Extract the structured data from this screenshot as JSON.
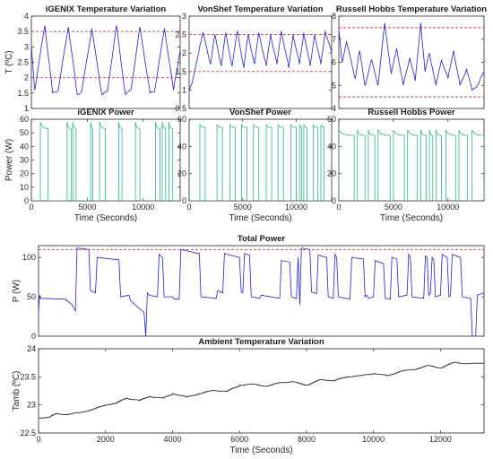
{
  "colors": {
    "temperature": "#1f1fd8",
    "power": "#2ab58c",
    "total": "#1f1fd8",
    "ambient": "#222222",
    "limit": "#e8333a",
    "axis": "#262626"
  },
  "chart_data": [
    {
      "id": "igenix_temp",
      "type": "line",
      "title": "iGENIX Temperature Variation",
      "xlabel": "",
      "ylabel": "T (ºC)",
      "xlim": [
        0,
        13300
      ],
      "ylim": [
        1,
        4
      ],
      "xticks": [],
      "yticks": [
        1,
        1.5,
        2,
        2.5,
        3,
        3.5,
        4
      ],
      "ytick_labels": [
        "1",
        "1.5",
        "2",
        "2.5",
        "3",
        "3.5",
        "4"
      ],
      "thresholds": [
        2,
        3.5
      ],
      "series": [
        {
          "x": [
            0,
            300,
            1200,
            1900,
            2400,
            3300,
            4100,
            4500,
            5400,
            6300,
            6800,
            7600,
            8400,
            8900,
            9700,
            10600,
            11000,
            11900,
            12700,
            13300
          ],
          "values": [
            3.05,
            1.6,
            3.7,
            1.5,
            1.6,
            3.65,
            1.45,
            1.55,
            3.6,
            1.45,
            1.55,
            3.7,
            1.45,
            1.6,
            3.65,
            1.5,
            1.55,
            3.6,
            1.6,
            2.9
          ]
        }
      ]
    },
    {
      "id": "vonshef_temp",
      "type": "line",
      "title": "VonShef Temperature Variation",
      "xlabel": "",
      "ylabel": "",
      "xlim": [
        0,
        13300
      ],
      "ylim": [
        0.5,
        3
      ],
      "xticks": [],
      "yticks": [
        0.5,
        1,
        1.5,
        2,
        2.5,
        3
      ],
      "ytick_labels": [
        "0.5",
        "1",
        "1.5",
        "2",
        "2.5",
        "3"
      ],
      "thresholds": [
        1.5,
        2.5
      ],
      "series": [
        {
          "x": [
            0,
            300,
            1000,
            1300,
            2000,
            2400,
            3000,
            3400,
            4000,
            4500,
            5100,
            5500,
            6100,
            6500,
            7200,
            7600,
            8200,
            8600,
            9300,
            9700,
            10300,
            10700,
            11300,
            11700,
            12300,
            12700,
            13300
          ],
          "values": [
            1.0,
            1.2,
            2.2,
            2.55,
            1.7,
            2.5,
            1.65,
            2.55,
            1.65,
            2.6,
            1.6,
            2.5,
            1.7,
            2.55,
            1.65,
            2.5,
            1.7,
            2.6,
            1.6,
            2.5,
            1.7,
            2.55,
            1.65,
            2.5,
            1.7,
            2.6,
            2.0
          ]
        }
      ]
    },
    {
      "id": "russell_temp",
      "type": "line",
      "title": "Russell Hobbs Temperature Variation",
      "xlabel": "",
      "ylabel": "",
      "xlim": [
        0,
        13300
      ],
      "ylim": [
        4,
        8
      ],
      "xticks": [],
      "yticks": [
        4,
        5,
        6,
        7,
        8
      ],
      "ytick_labels": [
        "4",
        "5",
        "6",
        "7",
        "8"
      ],
      "thresholds": [
        4.5,
        7.5
      ],
      "series": [
        {
          "x": [
            0,
            300,
            700,
            1500,
            1900,
            2400,
            3000,
            3600,
            4200,
            4800,
            5300,
            5900,
            6500,
            7000,
            7500,
            7900,
            8300,
            8900,
            9400,
            10000,
            10500,
            11100,
            11700,
            12200,
            12700,
            13300
          ],
          "values": [
            7.4,
            6.0,
            6.9,
            5.3,
            6.5,
            5.0,
            6.1,
            5.0,
            7.7,
            5.5,
            6.6,
            5.0,
            6.2,
            5.2,
            7.7,
            5.6,
            6.4,
            5.0,
            6.1,
            5.3,
            6.5,
            5.0,
            5.7,
            4.8,
            5.0,
            5.6
          ]
        }
      ]
    },
    {
      "id": "igenix_power",
      "type": "line",
      "title": "iGENIX Power",
      "xlabel": "Time (Seconds)",
      "ylabel": "Power (W)",
      "xlim": [
        0,
        13300
      ],
      "ylim": [
        0,
        60
      ],
      "xticks": [
        0,
        5000,
        10000
      ],
      "xtick_labels": [
        "0",
        "5000",
        "10000"
      ],
      "yticks": [
        0,
        10,
        20,
        30,
        40,
        50,
        60
      ],
      "ytick_labels": [
        "0",
        "10",
        "20",
        "30",
        "40",
        "50",
        "60"
      ],
      "pulses": [
        [
          800,
          1500
        ],
        [
          3200,
          3550
        ],
        [
          3700,
          4000
        ],
        [
          5300,
          5500
        ],
        [
          6100,
          6600
        ],
        [
          7800,
          8100
        ],
        [
          9300,
          9700
        ],
        [
          11100,
          11500
        ],
        [
          11700,
          12000
        ],
        [
          12300,
          12600
        ]
      ],
      "on_power": 58,
      "settle_power": 53
    },
    {
      "id": "vonshef_power",
      "type": "line",
      "title": "VonShef Power",
      "xlabel": "Time (Seconds)",
      "ylabel": "",
      "xlim": [
        0,
        13300
      ],
      "ylim": [
        0,
        60
      ],
      "xticks": [
        0,
        5000,
        10000
      ],
      "xtick_labels": [
        "0",
        "5000",
        "10000"
      ],
      "yticks": [
        0,
        20,
        40,
        60
      ],
      "ytick_labels": [
        "0",
        "20",
        "40",
        "60"
      ],
      "pulses": [
        [
          1000,
          1500
        ],
        [
          2600,
          3100
        ],
        [
          3800,
          4300
        ],
        [
          4900,
          5400
        ],
        [
          6000,
          6500
        ],
        [
          7200,
          7700
        ],
        [
          8300,
          8800
        ],
        [
          9500,
          10000
        ],
        [
          10300,
          10500
        ],
        [
          10700,
          11000
        ],
        [
          11600,
          12000
        ],
        [
          12300,
          12600
        ]
      ],
      "on_power": 56,
      "settle_power": 54
    },
    {
      "id": "russell_power",
      "type": "line",
      "title": "Russell Hobbs Power",
      "xlabel": "Time (Seconds)",
      "ylabel": "",
      "xlim": [
        0,
        13300
      ],
      "ylim": [
        0,
        60
      ],
      "xticks": [
        0,
        5000,
        10000
      ],
      "xtick_labels": [
        "0",
        "5000",
        "10000"
      ],
      "yticks": [
        0,
        20,
        40,
        60
      ],
      "ytick_labels": [
        "0",
        "20",
        "40",
        "60"
      ],
      "pulses": [
        [
          0,
          1400
        ],
        [
          1700,
          2400
        ],
        [
          2700,
          3300
        ],
        [
          3600,
          4700
        ],
        [
          5000,
          6000
        ],
        [
          6300,
          7200
        ],
        [
          7500,
          8000
        ],
        [
          8300,
          8600
        ],
        [
          8900,
          9400
        ],
        [
          9800,
          10700
        ],
        [
          11000,
          11800
        ],
        [
          12200,
          13300
        ]
      ],
      "on_power": 52,
      "settle_power": 48
    },
    {
      "id": "total_power",
      "type": "line",
      "title": "Total Power",
      "xlabel": "",
      "ylabel": "P (W)",
      "xlim": [
        0,
        13300
      ],
      "ylim": [
        0,
        115
      ],
      "xticks": [],
      "yticks": [
        0,
        50,
        100
      ],
      "ytick_labels": [
        "0",
        "50",
        "100"
      ],
      "thresholds": [
        110
      ],
      "series": [
        {
          "x": [
            0,
            30,
            60,
            800,
            1000,
            1100,
            1150,
            1500,
            1550,
            1700,
            1750,
            2400,
            2450,
            2700,
            2750,
            3150,
            3200,
            3250,
            3300,
            3550,
            3600,
            3700,
            3750,
            4000,
            4050,
            4200,
            4250,
            4800,
            4850,
            5300,
            5350,
            5500,
            5550,
            6000,
            6050,
            6100,
            6150,
            6300,
            6350,
            6600,
            6650,
            7200,
            7250,
            7500,
            7550,
            7700,
            7750,
            7800,
            7850,
            8100,
            8150,
            8300,
            8350,
            8600,
            8650,
            8800,
            8850,
            8900,
            8950,
            9300,
            9350,
            9700,
            9750,
            9800,
            9850,
            10000,
            10050,
            10300,
            10350,
            10500,
            10550,
            10700,
            10750,
            11000,
            11050,
            11100,
            11150,
            11500,
            11550,
            11600,
            11650,
            11700,
            11750,
            11800,
            11850,
            12000,
            12050,
            12200,
            12250,
            12300,
            12350,
            12600,
            12650,
            12900,
            12950,
            13050,
            13100,
            13300
          ],
          "values": [
            30,
            52,
            48,
            47,
            40,
            32,
            112,
            110,
            58,
            55,
            100,
            97,
            50,
            52,
            45,
            30,
            0,
            55,
            52,
            50,
            104,
            100,
            50,
            50,
            47,
            47,
            110,
            105,
            50,
            48,
            58,
            55,
            105,
            100,
            56,
            55,
            105,
            103,
            50,
            48,
            52,
            48,
            96,
            94,
            50,
            48,
            100,
            40,
            112,
            110,
            56,
            54,
            103,
            100,
            50,
            48,
            104,
            100,
            50,
            47,
            100,
            98,
            50,
            52,
            48,
            50,
            96,
            92,
            48,
            47,
            100,
            98,
            50,
            52,
            104,
            100,
            50,
            48,
            102,
            100,
            52,
            55,
            100,
            97,
            50,
            52,
            104,
            100,
            50,
            52,
            104,
            100,
            50,
            48,
            0,
            0,
            52,
            55
          ]
        }
      ]
    },
    {
      "id": "ambient_temp",
      "type": "line",
      "title": "Ambient Temperature Variation",
      "xlabel": "Time (Seconds)",
      "ylabel": "Tamb (ºC)",
      "xlim": [
        0,
        13300
      ],
      "ylim": [
        22.5,
        24
      ],
      "xticks": [
        0,
        2000,
        4000,
        6000,
        8000,
        10000,
        12000
      ],
      "xtick_labels": [
        "0",
        "2000",
        "4000",
        "6000",
        "8000",
        "10000",
        "12000"
      ],
      "yticks": [
        22.5,
        23,
        23.5,
        24
      ],
      "ytick_labels": [
        "22.5",
        "23",
        "23.5",
        "24"
      ],
      "series": [
        {
          "x": [
            0,
            300,
            500,
            800,
            1200,
            1600,
            2000,
            2300,
            2600,
            3000,
            3300,
            3700,
            4000,
            4400,
            4800,
            5200,
            5600,
            6000,
            6400,
            6800,
            7200,
            7600,
            8000,
            8400,
            8800,
            9200,
            9600,
            10000,
            10400,
            10800,
            11200,
            11600,
            12000,
            12400,
            12800,
            13300
          ],
          "values": [
            22.77,
            22.78,
            22.84,
            22.83,
            22.86,
            22.92,
            23.0,
            23.03,
            23.12,
            23.08,
            23.15,
            23.12,
            23.2,
            23.14,
            23.2,
            23.26,
            23.24,
            23.35,
            23.37,
            23.33,
            23.4,
            23.41,
            23.35,
            23.45,
            23.43,
            23.5,
            23.52,
            23.56,
            23.52,
            23.6,
            23.63,
            23.7,
            23.66,
            23.76,
            23.73,
            23.75
          ]
        }
      ]
    }
  ]
}
